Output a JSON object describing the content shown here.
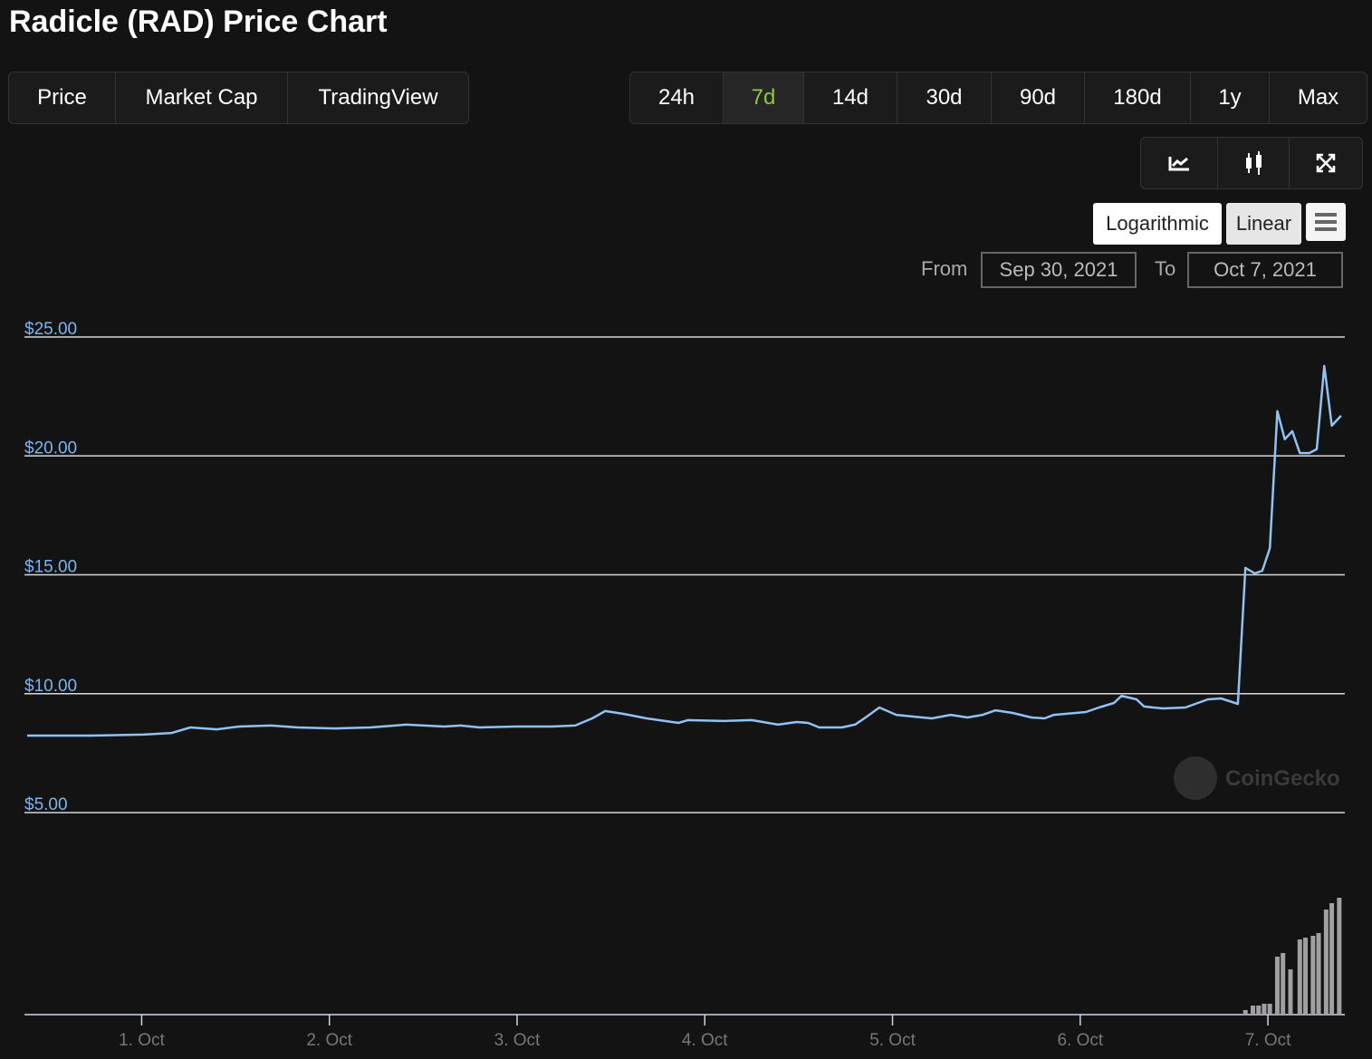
{
  "ui": {
    "title": "Radicle (RAD) Price Chart",
    "tabs": [
      "Price",
      "Market Cap",
      "TradingView"
    ],
    "ranges": [
      "24h",
      "7d",
      "14d",
      "30d",
      "90d",
      "180d",
      "1y",
      "Max"
    ],
    "active_range": "7d",
    "scales": [
      "Logarithmic",
      "Linear"
    ],
    "from_label": "From",
    "from_date": "Sep 30, 2021",
    "to_label": "To",
    "to_date": "Oct 7, 2021",
    "watermark": "CoinGecko"
  },
  "chart_data": {
    "type": "line",
    "xlim": [
      0.39,
      7.4
    ],
    "xticks": [
      {
        "value": 1,
        "label": "1. Oct"
      },
      {
        "value": 2,
        "label": "2. Oct"
      },
      {
        "value": 3,
        "label": "3. Oct"
      },
      {
        "value": 4,
        "label": "4. Oct"
      },
      {
        "value": 5,
        "label": "5. Oct"
      },
      {
        "value": 6,
        "label": "6. Oct"
      },
      {
        "value": 7,
        "label": "7. Oct"
      }
    ],
    "ylim": [
      5,
      25
    ],
    "yticks": [
      {
        "value": 5,
        "label": "$5.00"
      },
      {
        "value": 10,
        "label": "$10.00"
      },
      {
        "value": 15,
        "label": "$15.00"
      },
      {
        "value": 20,
        "label": "$20.00"
      },
      {
        "value": 25,
        "label": "$25.00"
      }
    ],
    "grid": true,
    "series": [
      {
        "color": "#90c3f5",
        "x": [
          0.39,
          0.73,
          1.01,
          1.16,
          1.26,
          1.4,
          1.52,
          1.69,
          1.83,
          2.03,
          2.22,
          2.41,
          2.61,
          2.7,
          2.8,
          2.99,
          3.18,
          3.31,
          3.4,
          3.47,
          3.57,
          3.69,
          3.86,
          3.91,
          4.1,
          4.25,
          4.39,
          4.49,
          4.55,
          4.61,
          4.73,
          4.8,
          4.85,
          4.93,
          5.02,
          5.11,
          5.21,
          5.31,
          5.4,
          5.48,
          5.55,
          5.64,
          5.74,
          5.81,
          5.86,
          6.03,
          6.1,
          6.18,
          6.22,
          6.3,
          6.34,
          6.44,
          6.56,
          6.68,
          6.75,
          6.84,
          6.88,
          6.93,
          6.97,
          7.01,
          7.05,
          7.09,
          7.13,
          7.17,
          7.22,
          7.26,
          7.3,
          7.34,
          7.39
        ],
        "values": [
          8.24,
          8.24,
          8.28,
          8.35,
          8.58,
          8.5,
          8.62,
          8.66,
          8.58,
          8.54,
          8.58,
          8.7,
          8.62,
          8.66,
          8.58,
          8.62,
          8.62,
          8.66,
          8.96,
          9.27,
          9.15,
          8.96,
          8.77,
          8.89,
          8.85,
          8.89,
          8.7,
          8.81,
          8.77,
          8.58,
          8.58,
          8.7,
          8.96,
          9.42,
          9.11,
          9.04,
          8.96,
          9.11,
          9,
          9.11,
          9.3,
          9.19,
          9,
          8.96,
          9.11,
          9.23,
          9.42,
          9.61,
          9.91,
          9.76,
          9.46,
          9.38,
          9.42,
          9.76,
          9.8,
          9.57,
          15.29,
          15.06,
          15.17,
          16.12,
          21.88,
          20.7,
          21.04,
          20.12,
          20.12,
          20.28,
          23.78,
          21.27,
          21.69
        ]
      }
    ],
    "volume": {
      "color": "#a0a0a0",
      "ylim": [
        0,
        140
      ],
      "x": [
        6.88,
        6.92,
        6.95,
        6.98,
        7.01,
        7.05,
        7.08,
        7.12,
        7.17,
        7.2,
        7.24,
        7.27,
        7.31,
        7.34,
        7.38
      ],
      "values": [
        5,
        10,
        10,
        12,
        12,
        64,
        68,
        50,
        83,
        85,
        87,
        90,
        116,
        123,
        129
      ]
    }
  }
}
